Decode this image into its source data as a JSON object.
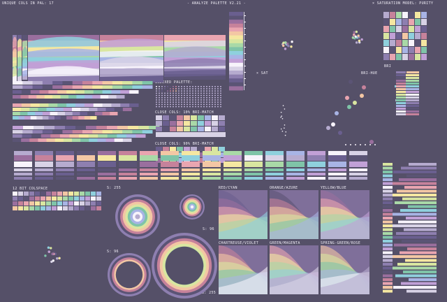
{
  "header": {
    "unique_cols": "UNIQUE COLS IN PAL: 17",
    "title": "- ANALYZE PALETTE V2.21 -",
    "saturation_model": "× SATURATION MODEL: PURITY"
  },
  "labels": {
    "x_sat": "× SAT",
    "bri": "BRI",
    "bri_hue": "BRI-HUE",
    "indexed_palette": "INDEXED PALETTE:",
    "close_cols_10": "CLOSE COLS: 10% BRI-MATCH",
    "close_cols_90": "CLOSE COLS: 90% BRI-MATCH",
    "colspace": "12 BIT COLSPACE",
    "s255_top": "S: 255",
    "s96_right": "S: 96",
    "s96_left": "S: 96",
    "s255_bottom": "S: 255",
    "red_cyan": "RED/CYAN",
    "orange_azure": "ORANGE/AZURE",
    "yellow_blue": "YELLOW/BLUE",
    "chartreuse_violet": "CHARTREUSE/VIOLET",
    "green_magenta": "GREEN/MAGENTA",
    "spring_rose": "SPRING-GREEN/ROSE"
  },
  "palette": [
    "#f7f3fb",
    "#d8d2e6",
    "#b6abcf",
    "#8e7fb0",
    "#6a5f8f",
    "#5b5475",
    "#9a6f9e",
    "#c6829b",
    "#e9a5b0",
    "#f3c7a4",
    "#f5e7a1",
    "#d9e6a0",
    "#a9d9a7",
    "#7fc4a8",
    "#8fd0dd",
    "#a8b4e5",
    "#c1a0d6"
  ]
}
